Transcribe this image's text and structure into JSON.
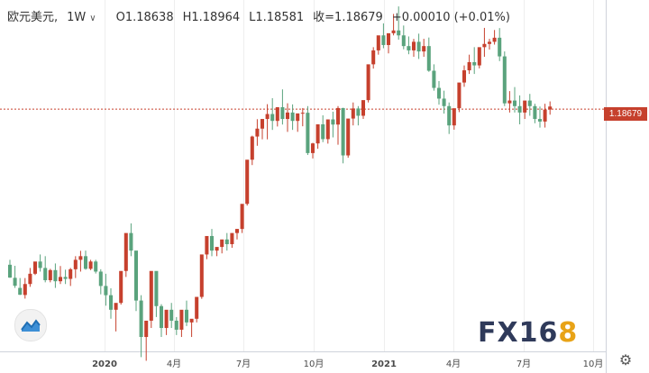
{
  "header": {
    "symbol": "欧元美元,",
    "interval": "1W",
    "caret": "∨",
    "open": "O1.18638",
    "high": "H1.18964",
    "low": "L1.18581",
    "close_change": "收=1.18679",
    "change": "+0.00010 (+0.01%)"
  },
  "current_price_label": "1.18679",
  "watermark": {
    "part1": "FX16",
    "part2": "8"
  },
  "icons": {
    "logo": "area-chart-icon",
    "settings": "gear-icon"
  },
  "colors": {
    "up": "#c6402d",
    "down": "#5aa37d",
    "price_line": "#c6402d",
    "grid": "#eeeeee"
  },
  "chart_data": {
    "type": "candlestick",
    "x_tick_labels": [
      "2020",
      "4月",
      "7月",
      "10月",
      "2021",
      "4月",
      "7月",
      "10月"
    ],
    "ylim": [
      1.0635,
      1.2375
    ],
    "current_price": 1.18679,
    "candles": [
      [
        1.114,
        1.1163,
        1.108,
        1.1079
      ],
      [
        1.1079,
        1.1135,
        1.1042,
        1.1032
      ],
      [
        1.1032,
        1.1078,
        1.1,
        1.0999
      ],
      [
        1.0999,
        1.1078,
        1.105,
        1.0982
      ],
      [
        1.105,
        1.1125,
        1.1098,
        1.1037
      ],
      [
        1.1098,
        1.1134,
        1.1155,
        1.1092
      ],
      [
        1.1155,
        1.1188,
        1.1125,
        1.1108
      ],
      [
        1.1125,
        1.118,
        1.1068,
        1.1058
      ],
      [
        1.1068,
        1.1121,
        1.1115,
        1.1058
      ],
      [
        1.1115,
        1.1146,
        1.1063,
        1.1032
      ],
      [
        1.1063,
        1.1134,
        1.1083,
        1.105
      ],
      [
        1.1083,
        1.1117,
        1.1074,
        1.105
      ],
      [
        1.1074,
        1.1125,
        1.1119,
        1.1041
      ],
      [
        1.1119,
        1.118,
        1.1163,
        1.1078
      ],
      [
        1.1163,
        1.1205,
        1.118,
        1.1108
      ],
      [
        1.118,
        1.1206,
        1.1121,
        1.1117
      ],
      [
        1.1121,
        1.1163,
        1.1155,
        1.1115
      ],
      [
        1.1155,
        1.1163,
        1.1108,
        1.1099
      ],
      [
        1.1108,
        1.1119,
        1.1041,
        1.1002
      ],
      [
        1.1041,
        1.1098,
        1.0998,
        1.0949
      ],
      [
        1.0998,
        1.103,
        1.093,
        1.0888
      ],
      [
        1.093,
        1.0947,
        1.0962,
        1.0829
      ],
      [
        1.0962,
        1.1032,
        1.1111,
        1.0954
      ],
      [
        1.1111,
        1.118,
        1.1288,
        1.1083
      ],
      [
        1.1288,
        1.1333,
        1.1206,
        1.118
      ],
      [
        1.1206,
        1.1155,
        1.0973,
        1.0924
      ],
      [
        1.0973,
        1.0998,
        1.0803,
        1.0709
      ],
      [
        1.0803,
        1.0871,
        1.0879,
        1.0692
      ],
      [
        1.0879,
        1.1005,
        1.1111,
        1.0845
      ],
      [
        1.1111,
        1.109,
        1.0947,
        1.0896
      ],
      [
        1.0947,
        1.0956,
        1.0845,
        1.0803
      ],
      [
        1.0845,
        1.0888,
        1.093,
        1.0812
      ],
      [
        1.093,
        1.0962,
        1.0879,
        1.0845
      ],
      [
        1.0879,
        1.0896,
        1.0837,
        1.0812
      ],
      [
        1.0837,
        1.0896,
        1.093,
        1.0803
      ],
      [
        1.093,
        1.0973,
        1.0871,
        1.0854
      ],
      [
        1.0871,
        1.0879,
        1.0888,
        1.0803
      ],
      [
        1.0888,
        1.0896,
        1.099,
        1.0871
      ],
      [
        1.099,
        1.1015,
        1.1188,
        1.0981
      ],
      [
        1.1188,
        1.1206,
        1.1274,
        1.1166
      ],
      [
        1.1274,
        1.1307,
        1.1206,
        1.118
      ],
      [
        1.1206,
        1.1219,
        1.1223,
        1.118
      ],
      [
        1.1223,
        1.1254,
        1.1258,
        1.1193
      ],
      [
        1.1258,
        1.1288,
        1.1236,
        1.1206
      ],
      [
        1.1236,
        1.1274,
        1.1288,
        1.1219
      ],
      [
        1.1288,
        1.1307,
        1.1307,
        1.1258
      ],
      [
        1.1307,
        1.1357,
        1.1424,
        1.1288
      ],
      [
        1.1424,
        1.1501,
        1.163,
        1.1416
      ],
      [
        1.163,
        1.1742,
        1.1738,
        1.1605
      ],
      [
        1.1738,
        1.1819,
        1.1775,
        1.1695
      ],
      [
        1.1775,
        1.1819,
        1.182,
        1.1725
      ],
      [
        1.182,
        1.1889,
        1.1843,
        1.1725
      ],
      [
        1.1843,
        1.1917,
        1.1811,
        1.1769
      ],
      [
        1.1811,
        1.1845,
        1.1875,
        1.1785
      ],
      [
        1.1875,
        1.1958,
        1.182,
        1.1794
      ],
      [
        1.182,
        1.1893,
        1.185,
        1.176
      ],
      [
        1.185,
        1.1888,
        1.1811,
        1.1769
      ],
      [
        1.1811,
        1.1837,
        1.1846,
        1.176
      ],
      [
        1.1846,
        1.1871,
        1.1849,
        1.1786
      ],
      [
        1.1849,
        1.188,
        1.1661,
        1.1652
      ],
      [
        1.1661,
        1.1709,
        1.1706,
        1.1636
      ],
      [
        1.1706,
        1.1777,
        1.1795,
        1.1681
      ],
      [
        1.1795,
        1.1837,
        1.1726,
        1.1712
      ],
      [
        1.1726,
        1.1794,
        1.1818,
        1.1705
      ],
      [
        1.1818,
        1.1854,
        1.1794,
        1.1734
      ],
      [
        1.1794,
        1.188,
        1.1871,
        1.17
      ],
      [
        1.1871,
        1.1872,
        1.165,
        1.1613
      ],
      [
        1.165,
        1.1713,
        1.1822,
        1.1639
      ],
      [
        1.1822,
        1.1897,
        1.1869,
        1.179
      ],
      [
        1.1869,
        1.188,
        1.1835,
        1.179
      ],
      [
        1.1835,
        1.1897,
        1.1908,
        1.182
      ],
      [
        1.1908,
        1.1978,
        1.2075,
        1.1897
      ],
      [
        1.2075,
        1.2155,
        1.214,
        1.2055
      ],
      [
        1.214,
        1.2179,
        1.221,
        1.212
      ],
      [
        1.221,
        1.2266,
        1.2165,
        1.215
      ],
      [
        1.2165,
        1.221,
        1.222,
        1.2126
      ],
      [
        1.222,
        1.231,
        1.2233,
        1.221
      ],
      [
        1.2233,
        1.2345,
        1.221,
        1.219
      ],
      [
        1.221,
        1.2256,
        1.216,
        1.2145
      ],
      [
        1.216,
        1.2205,
        1.214,
        1.2122
      ],
      [
        1.214,
        1.2194,
        1.218,
        1.211
      ],
      [
        1.218,
        1.2218,
        1.2135,
        1.21
      ],
      [
        1.2135,
        1.2194,
        1.216,
        1.211
      ],
      [
        1.216,
        1.22,
        1.2045,
        1.204
      ],
      [
        1.2045,
        1.2075,
        1.1965,
        1.1952
      ],
      [
        1.1965,
        1.1997,
        1.1915,
        1.1887
      ],
      [
        1.1915,
        1.1952,
        1.188,
        1.1845
      ],
      [
        1.188,
        1.1897,
        1.179,
        1.175
      ],
      [
        1.179,
        1.1845,
        1.187,
        1.177
      ],
      [
        1.187,
        1.1965,
        1.199,
        1.1852
      ],
      [
        1.199,
        1.207,
        1.2047,
        1.197
      ],
      [
        1.2047,
        1.212,
        1.2085,
        1.203
      ],
      [
        1.2085,
        1.2155,
        1.207,
        1.203
      ],
      [
        1.207,
        1.213,
        1.2155,
        1.2056
      ],
      [
        1.2155,
        1.2245,
        1.217,
        1.211
      ],
      [
        1.217,
        1.2194,
        1.218,
        1.2144
      ],
      [
        1.218,
        1.2235,
        1.2199,
        1.2167
      ],
      [
        1.2199,
        1.2244,
        1.2112,
        1.209
      ],
      [
        1.2112,
        1.2135,
        1.1893,
        1.188
      ],
      [
        1.1893,
        1.195,
        1.1906,
        1.185
      ],
      [
        1.1906,
        1.1969,
        1.188,
        1.185
      ],
      [
        1.188,
        1.193,
        1.185,
        1.1795
      ],
      [
        1.185,
        1.1878,
        1.1906,
        1.182
      ],
      [
        1.1906,
        1.1937,
        1.188,
        1.1835
      ],
      [
        1.188,
        1.1891,
        1.182,
        1.18
      ],
      [
        1.182,
        1.1878,
        1.1808,
        1.178
      ],
      [
        1.1808,
        1.1891,
        1.1864,
        1.178
      ],
      [
        1.1864,
        1.1902,
        1.1878,
        1.184
      ]
    ]
  }
}
